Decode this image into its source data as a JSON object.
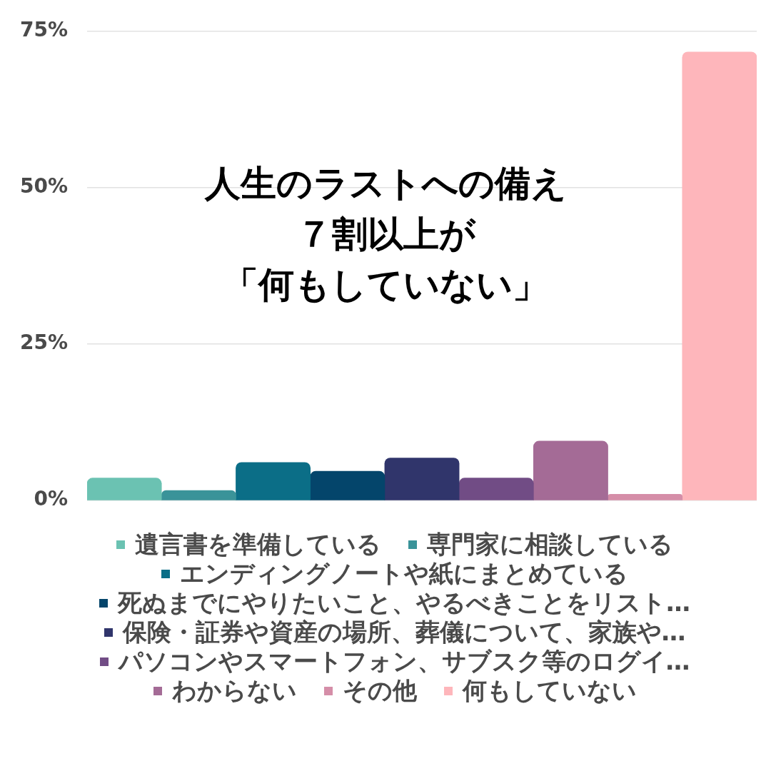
{
  "chart_data": {
    "type": "bar",
    "title": "人生のラストへの備え",
    "subtitle": "７割以上が「何もしていない」",
    "categories": [
      null
    ],
    "series": [
      {
        "name": "遺言書を準備している",
        "color": "#6bc2b2",
        "values": [
          3.6
        ]
      },
      {
        "name": "専門家に相談している",
        "color": "#3a9399",
        "values": [
          1.6
        ]
      },
      {
        "name": "エンディングノートや紙にまとめている",
        "color": "#0b6e87",
        "values": [
          6.1
        ]
      },
      {
        "name": "死ぬまでにやりたいこと、やるべきことをリスト…",
        "color": "#04456b",
        "values": [
          4.7
        ]
      },
      {
        "name": "保険・証券や資産の場所、葬儀について、家族や…",
        "color": "#30356b",
        "values": [
          6.8
        ]
      },
      {
        "name": "パソコンやスマートフォン、サブスク等のログイ…",
        "color": "#714c85",
        "values": [
          3.6
        ]
      },
      {
        "name": "わからない",
        "color": "#a46b96",
        "values": [
          9.5
        ]
      },
      {
        "name": "その他",
        "color": "#d58ea8",
        "values": [
          1.0
        ]
      },
      {
        "name": "何もしていない",
        "color": "#feb6bb",
        "values": [
          71.7
        ]
      }
    ],
    "ylim": [
      0,
      75
    ],
    "yticks": [
      {
        "value": 0,
        "label": "0%"
      },
      {
        "value": 25,
        "label": "25%"
      },
      {
        "value": 50,
        "label": "50%"
      },
      {
        "value": 75,
        "label": "75%"
      }
    ],
    "grid": "y",
    "legend": "bottom",
    "tick_labels": "y"
  }
}
